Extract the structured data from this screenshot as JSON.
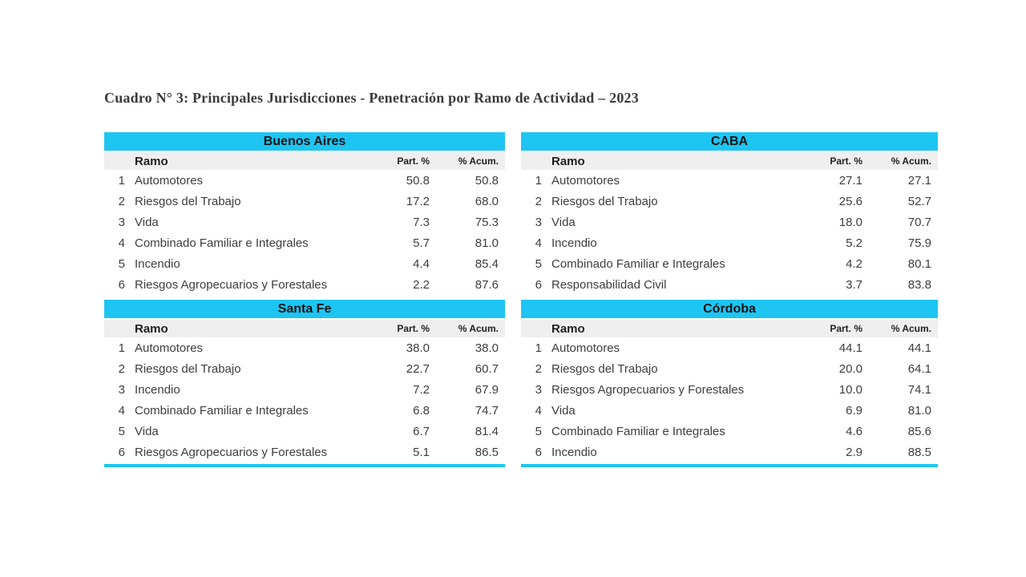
{
  "page_title": "Cuadro N° 3: Principales Jurisdicciones - Penetración por Ramo de Actividad – 2023",
  "column_headers": {
    "rank": "",
    "ramo": "Ramo",
    "part": "Part. %",
    "acum": "% Acum."
  },
  "tables": [
    {
      "region": "Buenos Aires",
      "rows": [
        {
          "rank": "1",
          "ramo": "Automotores",
          "part": "50.8",
          "acum": "50.8"
        },
        {
          "rank": "2",
          "ramo": "Riesgos del Trabajo",
          "part": "17.2",
          "acum": "68.0"
        },
        {
          "rank": "3",
          "ramo": "Vida",
          "part": "7.3",
          "acum": "75.3"
        },
        {
          "rank": "4",
          "ramo": "Combinado Familiar e Integrales",
          "part": "5.7",
          "acum": "81.0"
        },
        {
          "rank": "5",
          "ramo": "Incendio",
          "part": "4.4",
          "acum": "85.4"
        },
        {
          "rank": "6",
          "ramo": "Riesgos Agropecuarios y Forestales",
          "part": "2.2",
          "acum": "87.6"
        }
      ]
    },
    {
      "region": "CABA",
      "rows": [
        {
          "rank": "1",
          "ramo": "Automotores",
          "part": "27.1",
          "acum": "27.1"
        },
        {
          "rank": "2",
          "ramo": "Riesgos del Trabajo",
          "part": "25.6",
          "acum": "52.7"
        },
        {
          "rank": "3",
          "ramo": "Vida",
          "part": "18.0",
          "acum": "70.7"
        },
        {
          "rank": "4",
          "ramo": "Incendio",
          "part": "5.2",
          "acum": "75.9"
        },
        {
          "rank": "5",
          "ramo": "Combinado Familiar e Integrales",
          "part": "4.2",
          "acum": "80.1"
        },
        {
          "rank": "6",
          "ramo": "Responsabilidad Civil",
          "part": "3.7",
          "acum": "83.8"
        }
      ]
    },
    {
      "region": "Santa Fe",
      "rows": [
        {
          "rank": "1",
          "ramo": "Automotores",
          "part": "38.0",
          "acum": "38.0"
        },
        {
          "rank": "2",
          "ramo": "Riesgos del Trabajo",
          "part": "22.7",
          "acum": "60.7"
        },
        {
          "rank": "3",
          "ramo": "Incendio",
          "part": "7.2",
          "acum": "67.9"
        },
        {
          "rank": "4",
          "ramo": "Combinado Familiar e Integrales",
          "part": "6.8",
          "acum": "74.7"
        },
        {
          "rank": "5",
          "ramo": "Vida",
          "part": "6.7",
          "acum": "81.4"
        },
        {
          "rank": "6",
          "ramo": "Riesgos Agropecuarios y Forestales",
          "part": "5.1",
          "acum": "86.5"
        }
      ]
    },
    {
      "region": "Córdoba",
      "rows": [
        {
          "rank": "1",
          "ramo": "Automotores",
          "part": "44.1",
          "acum": "44.1"
        },
        {
          "rank": "2",
          "ramo": "Riesgos del Trabajo",
          "part": "20.0",
          "acum": "64.1"
        },
        {
          "rank": "3",
          "ramo": "Riesgos Agropecuarios y Forestales",
          "part": "10.0",
          "acum": "74.1"
        },
        {
          "rank": "4",
          "ramo": "Vida",
          "part": "6.9",
          "acum": "81.0"
        },
        {
          "rank": "5",
          "ramo": "Combinado Familiar e Integrales",
          "part": "4.6",
          "acum": "85.6"
        },
        {
          "rank": "6",
          "ramo": "Incendio",
          "part": "2.9",
          "acum": "88.5"
        }
      ]
    }
  ],
  "colors": {
    "band_cyan": "#1EC5F3",
    "header_gray": "#EFEFEF",
    "bottom_rule_cyan": "#1EC5F3"
  }
}
